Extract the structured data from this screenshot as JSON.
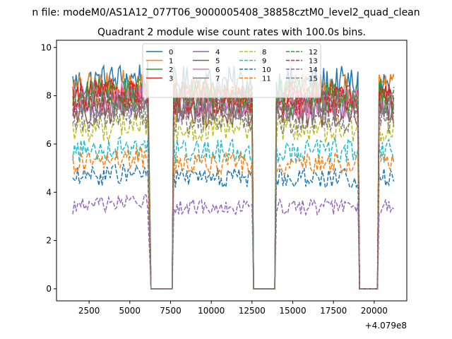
{
  "suptitle": "n file: modeM0/AS1A12_077T06_9000005408_38858cztM0_level2_quad_clean",
  "chart_data": {
    "type": "line",
    "title": "Quadrant 2 module wise count rates with 100.0s bins.",
    "xlabel": "",
    "ylabel": "",
    "x_offset_label": "+4.079e8",
    "xlim": [
      500,
      22000
    ],
    "ylim": [
      -0.5,
      10.3
    ],
    "xticks": [
      2500,
      5000,
      7500,
      10000,
      12500,
      15000,
      17500,
      20000
    ],
    "yticks": [
      0,
      2,
      4,
      6,
      8,
      10
    ],
    "grid": false,
    "legend_placement": "top-center",
    "legend_columns": 4,
    "segments": [
      {
        "x_start": 1500,
        "x_end": 6100
      },
      {
        "x_start": 7700,
        "x_end": 12500
      },
      {
        "x_start": 14000,
        "x_end": 19000
      },
      {
        "x_start": 20300,
        "x_end": 21200
      }
    ],
    "gaps": [
      {
        "x_start": 6300,
        "x_end": 7600
      },
      {
        "x_start": 12600,
        "x_end": 13900
      },
      {
        "x_start": 19100,
        "x_end": 20200
      }
    ],
    "series": [
      {
        "name": "0",
        "color": "#1f77b4",
        "dash": "solid",
        "level": 8.5
      },
      {
        "name": "1",
        "color": "#ff7f0e",
        "dash": "solid",
        "level": 8.2
      },
      {
        "name": "2",
        "color": "#2ca02c",
        "dash": "solid",
        "level": 8.0
      },
      {
        "name": "3",
        "color": "#d62728",
        "dash": "solid",
        "level": 7.9
      },
      {
        "name": "4",
        "color": "#9467bd",
        "dash": "solid",
        "level": 7.5
      },
      {
        "name": "5",
        "color": "#8c564b",
        "dash": "solid",
        "level": 7.3
      },
      {
        "name": "6",
        "color": "#e377c2",
        "dash": "solid",
        "level": 7.7
      },
      {
        "name": "7",
        "color": "#7f7f7f",
        "dash": "solid",
        "level": 7.6
      },
      {
        "name": "8",
        "color": "#bcbd22",
        "dash": "dashed",
        "level": 6.6
      },
      {
        "name": "9",
        "color": "#17becf",
        "dash": "dashed",
        "level": 5.7
      },
      {
        "name": "10",
        "color": "#1f77b4",
        "dash": "dashed",
        "level": 4.6
      },
      {
        "name": "11",
        "color": "#ff7f0e",
        "dash": "dashed",
        "level": 5.2
      },
      {
        "name": "12",
        "color": "#2ca02c",
        "dash": "dashed",
        "level": 7.9
      },
      {
        "name": "13",
        "color": "#d62728",
        "dash": "dashed",
        "level": 7.8
      },
      {
        "name": "14",
        "color": "#9467bd",
        "dash": "dashed",
        "level": 3.4
      },
      {
        "name": "15",
        "color": "#7f7f7f",
        "dash": "dashed",
        "level": 7.0
      }
    ]
  }
}
